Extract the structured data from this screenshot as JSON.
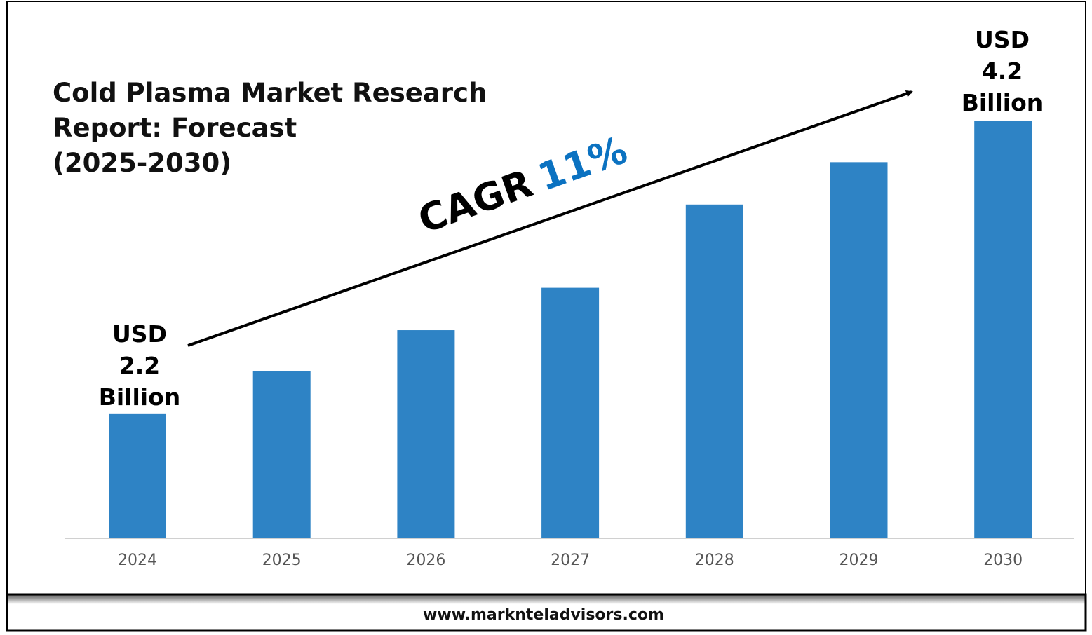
{
  "chart_data": {
    "type": "bar",
    "title": [
      "Cold Plasma Market Research",
      "Report: Forecast",
      "(2025-2030)"
    ],
    "categories": [
      "2024",
      "2025",
      "2026",
      "2027",
      "2028",
      "2029",
      "2030"
    ],
    "values": [
      2.2,
      2.49,
      2.77,
      3.06,
      3.63,
      3.92,
      4.2
    ],
    "ylim": [
      1.35,
      4.2
    ],
    "grid": false,
    "bar_color": "#2E83C5",
    "annotations": {
      "start": [
        "USD",
        "2.2",
        "Billion"
      ],
      "end": [
        "USD",
        "4.2",
        "Billion"
      ],
      "cagr_label": "CAGR",
      "cagr_value": "11%",
      "cagr_color": "#0B72C1"
    }
  },
  "footer": {
    "website": "www.marknteladvisors.com"
  }
}
